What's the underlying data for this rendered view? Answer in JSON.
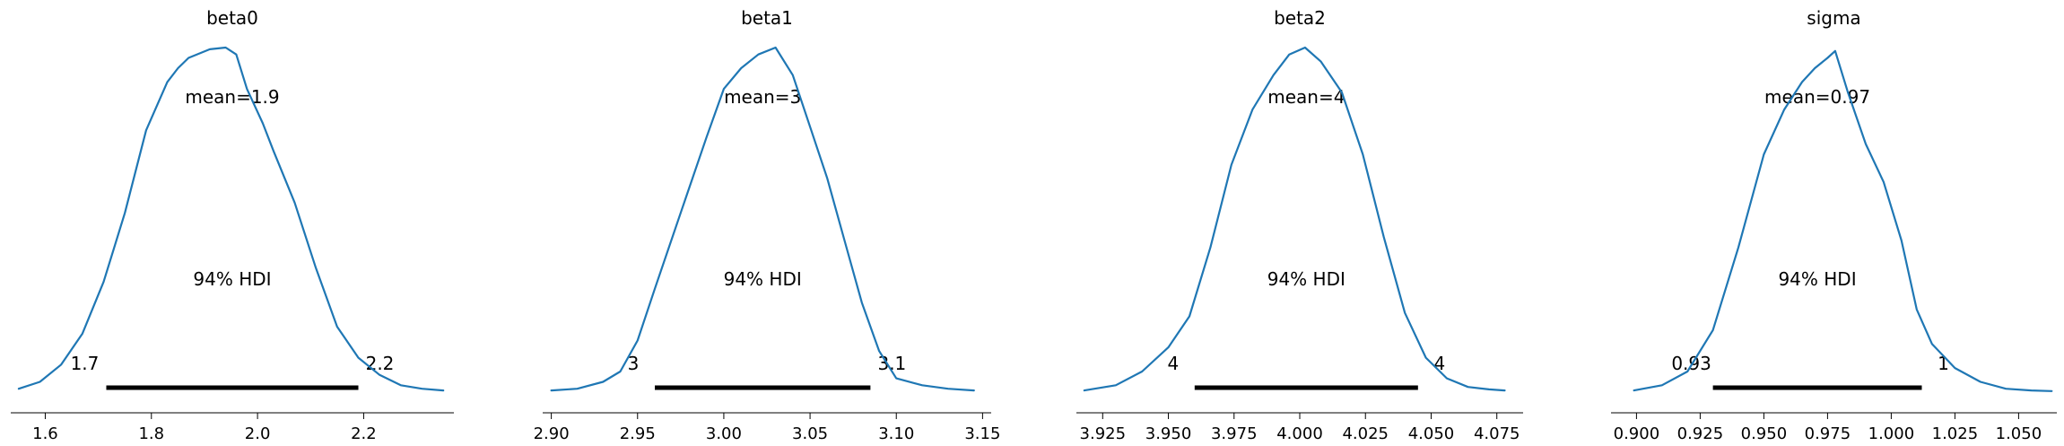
{
  "chart_data": [
    {
      "type": "density",
      "title": "beta0",
      "xlim": [
        1.535,
        2.37
      ],
      "ticks": [
        1.6,
        1.8,
        2.0,
        2.2
      ],
      "tick_labels": [
        "1.6",
        "1.8",
        "2.0",
        "2.2"
      ],
      "mean_label": "mean=1.9",
      "hdi_label": "94% HDI",
      "hdi": [
        1.715,
        2.19
      ],
      "hdi_low_label": "1.7",
      "hdi_high_label": "2.2",
      "density": {
        "x": [
          1.55,
          1.59,
          1.63,
          1.67,
          1.71,
          1.75,
          1.79,
          1.83,
          1.85,
          1.87,
          1.91,
          1.94,
          1.96,
          1.98,
          2.01,
          2.03,
          2.07,
          2.11,
          2.15,
          2.19,
          2.23,
          2.27,
          2.31,
          2.35
        ],
        "y": [
          0.01,
          0.03,
          0.08,
          0.17,
          0.32,
          0.52,
          0.76,
          0.9,
          0.94,
          0.97,
          0.995,
          1.0,
          0.98,
          0.88,
          0.78,
          0.7,
          0.55,
          0.36,
          0.19,
          0.1,
          0.05,
          0.02,
          0.01,
          0.005
        ]
      }
    },
    {
      "type": "density",
      "title": "beta1",
      "xlim": [
        2.895,
        3.155
      ],
      "ticks": [
        2.9,
        2.95,
        3.0,
        3.05,
        3.1,
        3.15
      ],
      "tick_labels": [
        "2.90",
        "2.95",
        "3.00",
        "3.05",
        "3.10",
        "3.15"
      ],
      "mean_label": "mean=3",
      "hdi_label": "94% HDI",
      "hdi": [
        2.96,
        3.085
      ],
      "hdi_low_label": "3",
      "hdi_high_label": "3.1",
      "density": {
        "x": [
          2.9,
          2.915,
          2.93,
          2.94,
          2.95,
          2.96,
          2.975,
          2.99,
          3.0,
          3.01,
          3.02,
          3.03,
          3.04,
          3.05,
          3.06,
          3.07,
          3.08,
          3.09,
          3.1,
          3.115,
          3.13,
          3.145
        ],
        "y": [
          0.005,
          0.01,
          0.03,
          0.06,
          0.15,
          0.3,
          0.52,
          0.74,
          0.88,
          0.94,
          0.98,
          1.0,
          0.92,
          0.77,
          0.62,
          0.44,
          0.26,
          0.12,
          0.04,
          0.02,
          0.01,
          0.005
        ]
      }
    },
    {
      "type": "density",
      "title": "beta2",
      "xlim": [
        3.915,
        4.085
      ],
      "ticks": [
        3.925,
        3.95,
        3.975,
        4.0,
        4.025,
        4.05,
        4.075
      ],
      "tick_labels": [
        "3.925",
        "3.950",
        "3.975",
        "4.000",
        "4.025",
        "4.050",
        "4.075"
      ],
      "mean_label": "mean=4",
      "hdi_label": "94% HDI",
      "hdi": [
        3.96,
        4.045
      ],
      "hdi_low_label": "4",
      "hdi_high_label": "4",
      "density": {
        "x": [
          3.918,
          3.93,
          3.94,
          3.95,
          3.958,
          3.966,
          3.974,
          3.982,
          3.99,
          3.996,
          4.002,
          4.008,
          4.016,
          4.024,
          4.032,
          4.04,
          4.048,
          4.056,
          4.064,
          4.072,
          4.078
        ],
        "y": [
          0.005,
          0.02,
          0.06,
          0.13,
          0.22,
          0.42,
          0.66,
          0.82,
          0.92,
          0.98,
          1.0,
          0.96,
          0.87,
          0.69,
          0.45,
          0.23,
          0.1,
          0.04,
          0.015,
          0.008,
          0.005
        ]
      }
    },
    {
      "type": "density",
      "title": "sigma",
      "xlim": [
        0.89,
        1.065
      ],
      "ticks": [
        0.9,
        0.925,
        0.95,
        0.975,
        1.0,
        1.025,
        1.05
      ],
      "tick_labels": [
        "0.900",
        "0.925",
        "0.950",
        "0.975",
        "1.000",
        "1.025",
        "1.050"
      ],
      "mean_label": "mean=0.97",
      "hdi_label": "94% HDI",
      "hdi": [
        0.93,
        1.012
      ],
      "hdi_low_label": "0.93",
      "hdi_high_label": "1",
      "density": {
        "x": [
          0.899,
          0.91,
          0.92,
          0.93,
          0.94,
          0.95,
          0.958,
          0.965,
          0.97,
          0.975,
          0.978,
          0.983,
          0.99,
          0.997,
          1.004,
          1.01,
          1.016,
          1.025,
          1.035,
          1.045,
          1.055,
          1.063
        ],
        "y": [
          0.005,
          0.02,
          0.06,
          0.18,
          0.42,
          0.69,
          0.82,
          0.9,
          0.94,
          0.97,
          0.99,
          0.87,
          0.72,
          0.61,
          0.44,
          0.24,
          0.14,
          0.07,
          0.03,
          0.01,
          0.005,
          0.003
        ]
      }
    }
  ],
  "colors": {
    "density_line": "#1f77b4",
    "hdi_bar": "#000000",
    "axis": "#000000"
  }
}
